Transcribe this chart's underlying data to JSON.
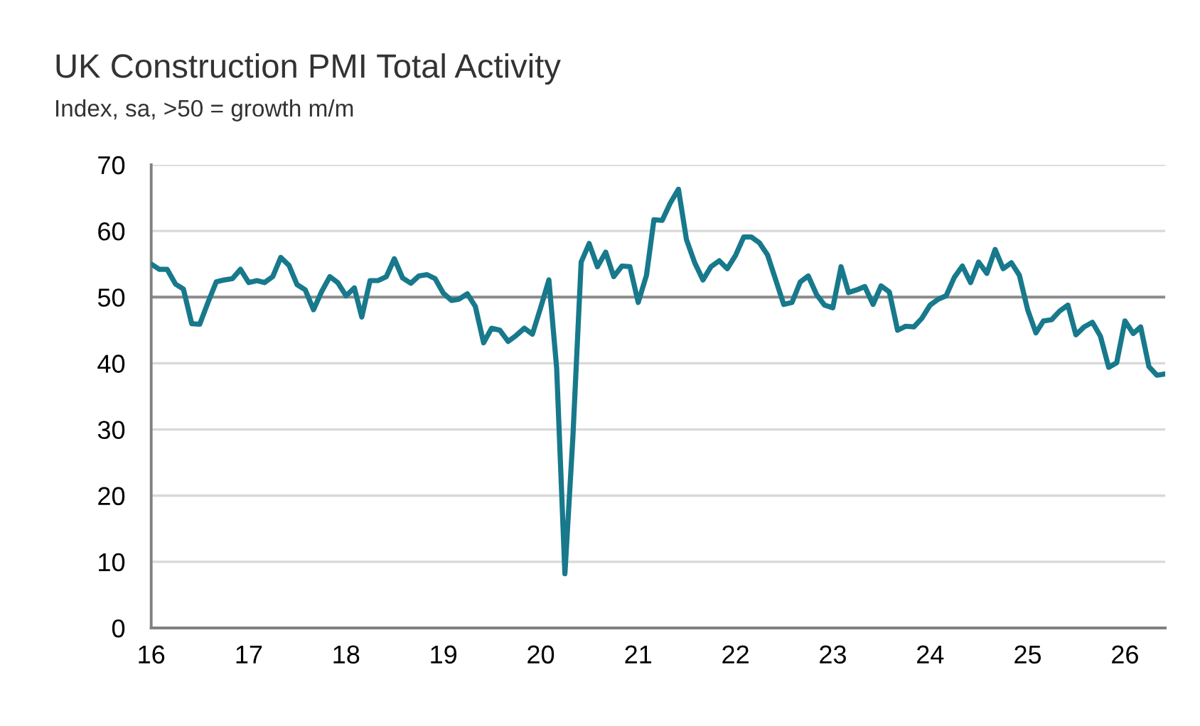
{
  "chart_data": {
    "type": "line",
    "title": "UK Construction PMI Total Activity",
    "subtitle": "Index, sa, >50 = growth m/m",
    "x": [
      "2016-01",
      "2016-02",
      "2016-03",
      "2016-04",
      "2016-05",
      "2016-06",
      "2016-07",
      "2016-08",
      "2016-09",
      "2016-10",
      "2016-11",
      "2016-12",
      "2017-01",
      "2017-02",
      "2017-03",
      "2017-04",
      "2017-05",
      "2017-06",
      "2017-07",
      "2017-08",
      "2017-09",
      "2017-10",
      "2017-11",
      "2017-12",
      "2018-01",
      "2018-02",
      "2018-03",
      "2018-04",
      "2018-05",
      "2018-06",
      "2018-07",
      "2018-08",
      "2018-09",
      "2018-10",
      "2018-11",
      "2018-12",
      "2019-01",
      "2019-02",
      "2019-03",
      "2019-04",
      "2019-05",
      "2019-06",
      "2019-07",
      "2019-08",
      "2019-09",
      "2019-10",
      "2019-11",
      "2019-12",
      "2020-01",
      "2020-02",
      "2020-03",
      "2020-04",
      "2020-05",
      "2020-06",
      "2020-07",
      "2020-08",
      "2020-09",
      "2020-10",
      "2020-11",
      "2020-12",
      "2021-01",
      "2021-02",
      "2021-03",
      "2021-04",
      "2021-05",
      "2021-06",
      "2021-07",
      "2021-08",
      "2021-09",
      "2021-10",
      "2021-11",
      "2021-12",
      "2022-01",
      "2022-02",
      "2022-03",
      "2022-04",
      "2022-05",
      "2022-06",
      "2022-07",
      "2022-08",
      "2022-09",
      "2022-10",
      "2022-11",
      "2022-12",
      "2023-01",
      "2023-02",
      "2023-03",
      "2023-04",
      "2023-05",
      "2023-06",
      "2023-07",
      "2023-08",
      "2023-09",
      "2023-10",
      "2023-11",
      "2023-12",
      "2024-01",
      "2024-02",
      "2024-03",
      "2024-04",
      "2024-05",
      "2024-06",
      "2024-07",
      "2024-08",
      "2024-09",
      "2024-10",
      "2024-11",
      "2024-12",
      "2025-01",
      "2025-02",
      "2025-03",
      "2025-04",
      "2025-05",
      "2025-06",
      "2025-07",
      "2025-08",
      "2025-09",
      "2025-10",
      "2025-11",
      "2025-12",
      "2026-01",
      "2026-02",
      "2026-03",
      "2026-04",
      "2026-05",
      "2026-06"
    ],
    "series": [
      {
        "color": "#17798b",
        "values": [
          55.0,
          54.2,
          54.2,
          52.0,
          51.2,
          46.0,
          45.9,
          49.2,
          52.3,
          52.6,
          52.8,
          54.2,
          52.2,
          52.5,
          52.2,
          53.1,
          56.0,
          54.8,
          51.9,
          51.1,
          48.1,
          50.8,
          53.1,
          52.2,
          50.2,
          51.4,
          47.0,
          52.5,
          52.5,
          53.1,
          55.8,
          52.9,
          52.1,
          53.2,
          53.4,
          52.8,
          50.6,
          49.5,
          49.7,
          50.5,
          48.6,
          43.1,
          45.3,
          45.0,
          43.3,
          44.2,
          45.3,
          44.4,
          48.4,
          52.6,
          39.3,
          8.2,
          28.9,
          55.3,
          58.1,
          54.6,
          56.8,
          53.1,
          54.7,
          54.6,
          49.2,
          53.3,
          61.7,
          61.6,
          64.2,
          66.3,
          58.7,
          55.2,
          52.6,
          54.6,
          55.5,
          54.3,
          56.3,
          59.1,
          59.1,
          58.2,
          56.4,
          52.6,
          48.9,
          49.2,
          52.3,
          53.2,
          50.4,
          48.8,
          48.4,
          54.6,
          50.7,
          51.1,
          51.6,
          48.9,
          51.7,
          50.8,
          45.0,
          45.6,
          45.5,
          46.8,
          48.8,
          49.7,
          50.2,
          53.0,
          54.7,
          52.2,
          55.3,
          53.6,
          57.2,
          54.3,
          55.2,
          53.3,
          48.1,
          44.6,
          46.4,
          46.6,
          47.9,
          48.8,
          44.3,
          45.5,
          46.2,
          44.1,
          39.4,
          40.1,
          46.4,
          44.5,
          45.5,
          39.5,
          38.2,
          38.4
        ]
      }
    ],
    "xlim": [
      "2016-01",
      "2026-06"
    ],
    "xticks": [
      {
        "value": "2016-01",
        "label": "16"
      },
      {
        "value": "2017-01",
        "label": "17"
      },
      {
        "value": "2018-01",
        "label": "18"
      },
      {
        "value": "2019-01",
        "label": "19"
      },
      {
        "value": "2020-01",
        "label": "20"
      },
      {
        "value": "2021-01",
        "label": "21"
      },
      {
        "value": "2022-01",
        "label": "22"
      },
      {
        "value": "2023-01",
        "label": "23"
      },
      {
        "value": "2024-01",
        "label": "24"
      },
      {
        "value": "2025-01",
        "label": "25"
      },
      {
        "value": "2026-01",
        "label": "26"
      }
    ],
    "ylim": [
      0,
      70
    ],
    "yticks": [
      0,
      10,
      20,
      30,
      40,
      50,
      60,
      70
    ],
    "grid": "y",
    "ref_lines": [
      {
        "axis": "y",
        "value": 50,
        "color": "#8c8c8c"
      }
    ],
    "line_style": "solid",
    "marker": "none"
  }
}
